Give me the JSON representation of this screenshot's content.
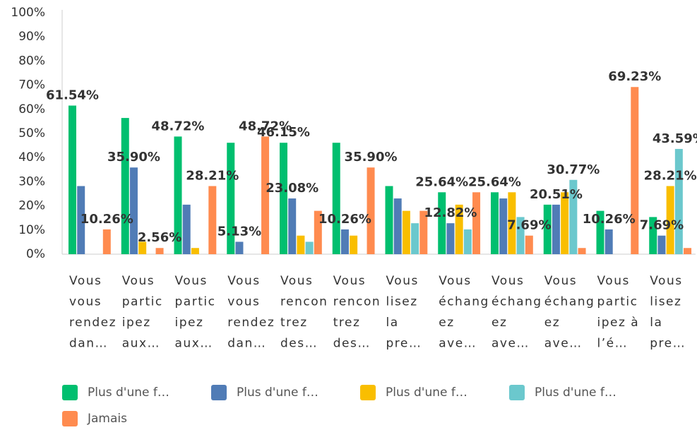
{
  "chart_data": {
    "type": "bar",
    "categories": [
      [
        "Vous",
        "vous",
        "rendez",
        "dan…"
      ],
      [
        "Vous",
        "partic",
        "ipez",
        "aux…"
      ],
      [
        "Vous",
        "partic",
        "ipez",
        "aux…"
      ],
      [
        "Vous",
        "vous",
        "rendez",
        "dan…"
      ],
      [
        "Vous",
        "rencon",
        "trez",
        "des…"
      ],
      [
        "Vous",
        "rencon",
        "trez",
        "des…"
      ],
      [
        "Vous",
        "lisez",
        "la",
        "pre…"
      ],
      [
        "Vous",
        "échang",
        "ez",
        "ave…"
      ],
      [
        "Vous",
        "échang",
        "ez",
        "ave…"
      ],
      [
        "Vous",
        "échang",
        "ez",
        "ave…"
      ],
      [
        "Vous",
        "partic",
        "ipez à",
        "l’é…"
      ],
      [
        "Vous",
        "lisez",
        "la",
        "pre…"
      ]
    ],
    "series": [
      {
        "name": "Plus d'une f…",
        "color": "#00bf6f",
        "values": [
          61.54,
          56.41,
          48.72,
          46.15,
          46.15,
          46.15,
          28.21,
          25.64,
          25.64,
          20.51,
          17.95,
          15.38
        ],
        "value_labels": [
          "61.54%",
          null,
          "48.72%",
          null,
          "46.15%",
          null,
          null,
          "25.64%",
          "25.64%",
          null,
          null,
          null
        ]
      },
      {
        "name": "Plus d'une f…",
        "color": "#507cb6",
        "values": [
          28.21,
          35.9,
          20.51,
          5.13,
          23.08,
          10.26,
          23.08,
          12.82,
          23.08,
          20.51,
          10.26,
          7.69
        ],
        "value_labels": [
          null,
          "35.90%",
          null,
          "5.13%",
          "23.08%",
          "10.26%",
          null,
          "12.82%",
          null,
          "20.51%",
          "10.26%",
          "7.69%"
        ]
      },
      {
        "name": "Plus d'une f…",
        "color": "#f9be00",
        "values": [
          0,
          5.13,
          2.56,
          0,
          7.69,
          7.69,
          17.95,
          20.51,
          25.64,
          25.64,
          0,
          28.21
        ],
        "value_labels": [
          null,
          null,
          null,
          null,
          null,
          null,
          null,
          null,
          null,
          null,
          null,
          "28.21%"
        ]
      },
      {
        "name": "Plus d'une f…",
        "color": "#6bc8cd",
        "values": [
          0,
          0,
          0,
          0,
          5.13,
          0,
          12.82,
          10.26,
          15.38,
          30.77,
          0,
          43.59
        ],
        "value_labels": [
          null,
          null,
          null,
          null,
          null,
          null,
          null,
          null,
          null,
          "30.77%",
          null,
          "43.59%"
        ]
      },
      {
        "name": "Jamais",
        "color": "#ff8b4f",
        "values": [
          10.26,
          2.56,
          28.21,
          48.72,
          17.95,
          35.9,
          17.95,
          25.64,
          7.69,
          2.56,
          69.23,
          2.56
        ],
        "value_labels": [
          "10.26%",
          "2.56%",
          "28.21%",
          "48.72%",
          null,
          "35.90%",
          null,
          null,
          "7.69%",
          null,
          "69.23%",
          null
        ]
      }
    ],
    "ylim": [
      0,
      100
    ],
    "yticks": [
      {
        "value": 0,
        "label": "0%"
      },
      {
        "value": 10,
        "label": "10%"
      },
      {
        "value": 20,
        "label": "20%"
      },
      {
        "value": 30,
        "label": "30%"
      },
      {
        "value": 40,
        "label": "40%"
      },
      {
        "value": 50,
        "label": "50%"
      },
      {
        "value": 60,
        "label": "60%"
      },
      {
        "value": 70,
        "label": "70%"
      },
      {
        "value": 80,
        "label": "80%"
      },
      {
        "value": 90,
        "label": "90%"
      },
      {
        "value": 100,
        "label": "100%"
      }
    ],
    "grid": false
  }
}
